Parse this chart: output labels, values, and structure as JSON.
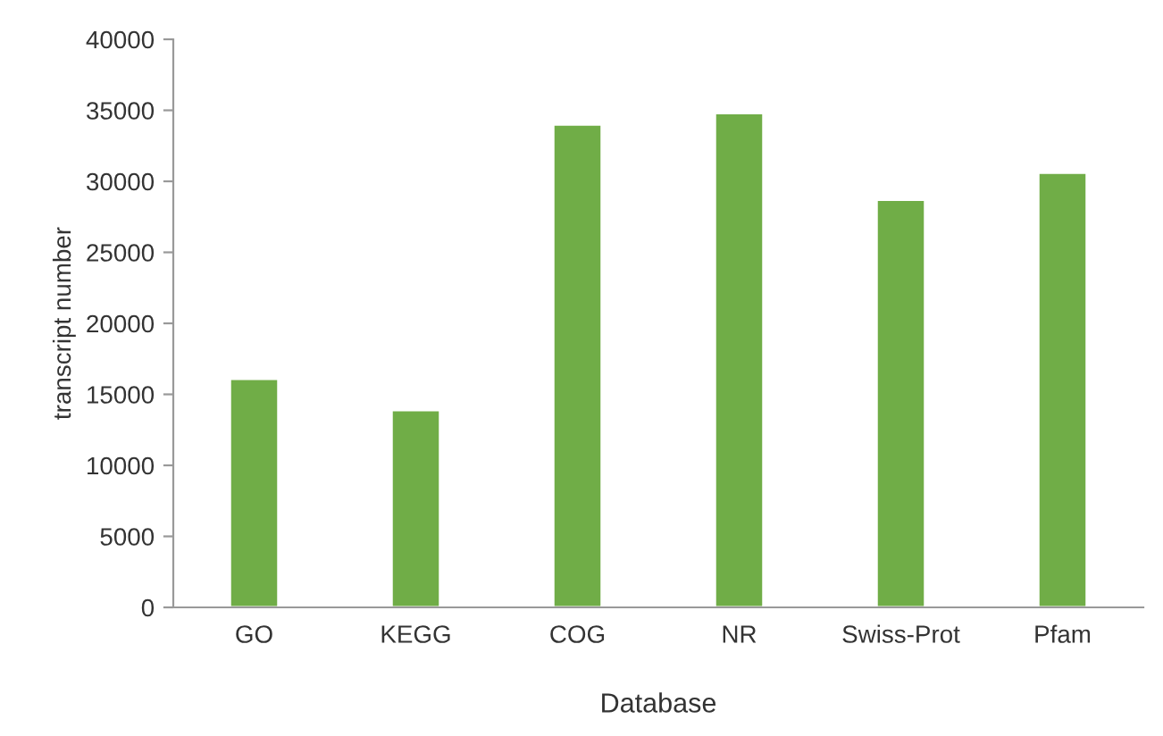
{
  "chart_data": {
    "type": "bar",
    "xlabel": "Database",
    "ylabel": "transcript number",
    "categories": [
      "GO",
      "KEGG",
      "COG",
      "NR",
      "Swiss-Prot",
      "Pfam"
    ],
    "values": [
      16100,
      13900,
      34000,
      34800,
      28700,
      30600
    ],
    "color": "#70ad47",
    "ylim": [
      0,
      40000
    ],
    "yticks": [
      0,
      5000,
      10000,
      15000,
      20000,
      25000,
      30000,
      35000,
      40000
    ],
    "grid": false
  }
}
